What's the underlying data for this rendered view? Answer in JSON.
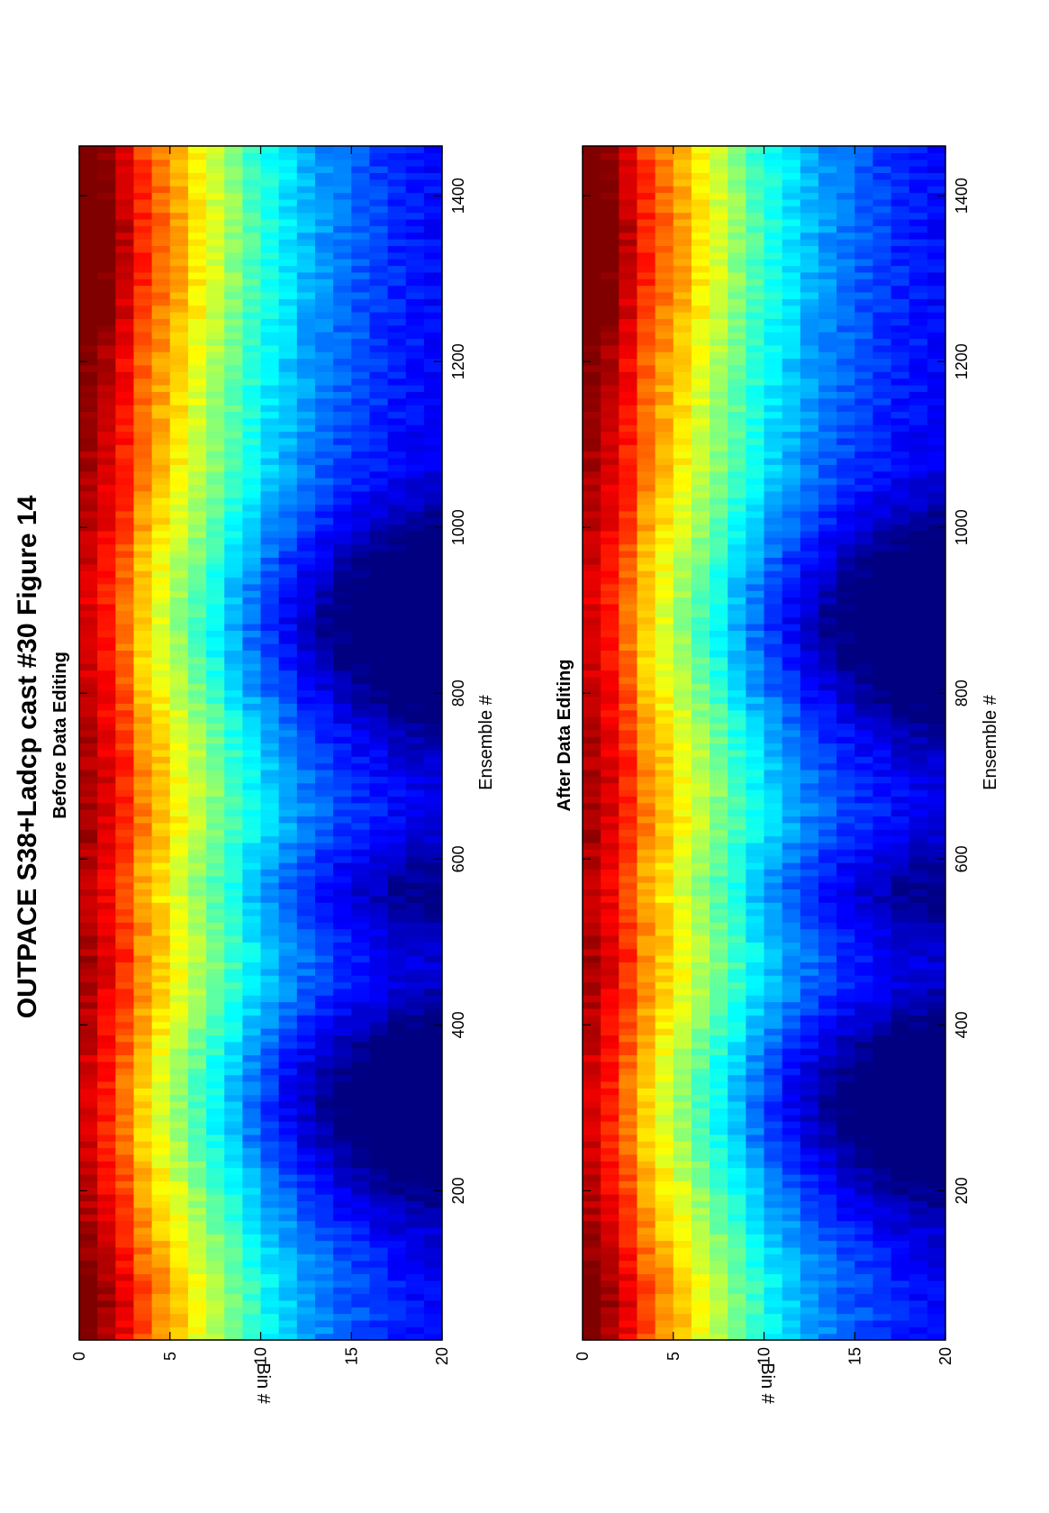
{
  "figure": {
    "title": "OUTPACE S38+Ladcp cast #30  Figure 14",
    "orientation": "rotated 90° counter-clockwise"
  },
  "chart_data": [
    {
      "type": "heatmap",
      "title": "Before Data Editing",
      "xlabel": "Ensemble #",
      "ylabel": "Bin #",
      "xlim": [
        20,
        1460
      ],
      "ylim": [
        20,
        0
      ],
      "xticks": [
        "200",
        "400",
        "600",
        "800",
        "1000",
        "1200",
        "1400"
      ],
      "yticks": [
        "0",
        "5",
        "10",
        "15",
        "20"
      ],
      "grid": false,
      "colormap": "jet",
      "rows": 20,
      "description_of_values": "echo intensity decreasing with bin #; high (red) near bin 1, low (blue) near bin 20; trough lobes near ensembles 300 and 900",
      "row_profile": [
        0.97,
        0.92,
        0.85,
        0.76,
        0.7,
        0.64,
        0.58,
        0.52,
        0.46,
        0.4,
        0.35,
        0.31,
        0.27,
        0.24,
        0.21,
        0.19,
        0.17,
        0.15,
        0.14,
        0.13
      ]
    },
    {
      "type": "heatmap",
      "title": "After Data Editing",
      "xlabel": "Ensemble #",
      "ylabel": "Bin #",
      "xlim": [
        20,
        1460
      ],
      "ylim": [
        20,
        0
      ],
      "xticks": [
        "200",
        "400",
        "600",
        "800",
        "1000",
        "1200",
        "1400"
      ],
      "yticks": [
        "0",
        "5",
        "10",
        "15",
        "20"
      ],
      "grid": false,
      "colormap": "jet",
      "rows": 20,
      "row_profile": [
        0.97,
        0.92,
        0.85,
        0.76,
        0.7,
        0.64,
        0.58,
        0.52,
        0.46,
        0.4,
        0.35,
        0.31,
        0.27,
        0.24,
        0.21,
        0.19,
        0.17,
        0.15,
        0.14,
        0.13
      ]
    }
  ]
}
